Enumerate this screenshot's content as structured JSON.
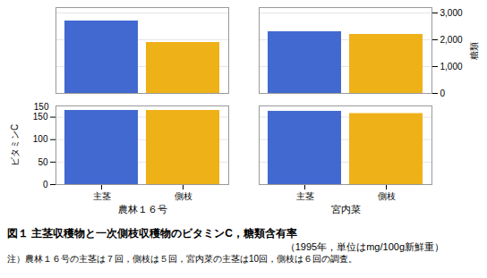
{
  "chart_data": [
    {
      "type": "bar",
      "ylabel": "糖類",
      "categories": [
        "農林１６号",
        "宮内菜"
      ],
      "series": [
        {
          "name": "主茎",
          "values": [
            2700,
            2300
          ]
        },
        {
          "name": "側枝",
          "values": [
            1900,
            2200
          ]
        }
      ],
      "ylim": [
        0,
        3200
      ],
      "yticks": [
        0,
        {
          "value": 1000,
          "label": "1,000"
        },
        {
          "value": 2000,
          "label": "2,000"
        },
        {
          "value": 3000,
          "label": "3,000"
        }
      ],
      "grid": true,
      "tick_labels": "y"
    },
    {
      "type": "bar",
      "title": "図１ 主茎収穫物と一次側枝収穫物のビタミンC，糖類含有率",
      "subtitle": "（1995年，単位はmg/100g新鮮重）",
      "caption": "注）農林１６号の主茎は７回，側枝は５回，宮内菜の主茎は10回，側枝は６回の調査。",
      "ylabel": "ビタミンC",
      "categories": [
        "農林１６号",
        "宮内菜"
      ],
      "series": [
        {
          "name": "主茎",
          "values": [
            165,
            163
          ]
        },
        {
          "name": "側枝",
          "values": [
            165,
            158
          ]
        }
      ],
      "ylim": [
        0,
        175
      ],
      "yticks": [
        0,
        50,
        100,
        150
      ],
      "grid": true,
      "annotations": [
        "150"
      ]
    }
  ]
}
